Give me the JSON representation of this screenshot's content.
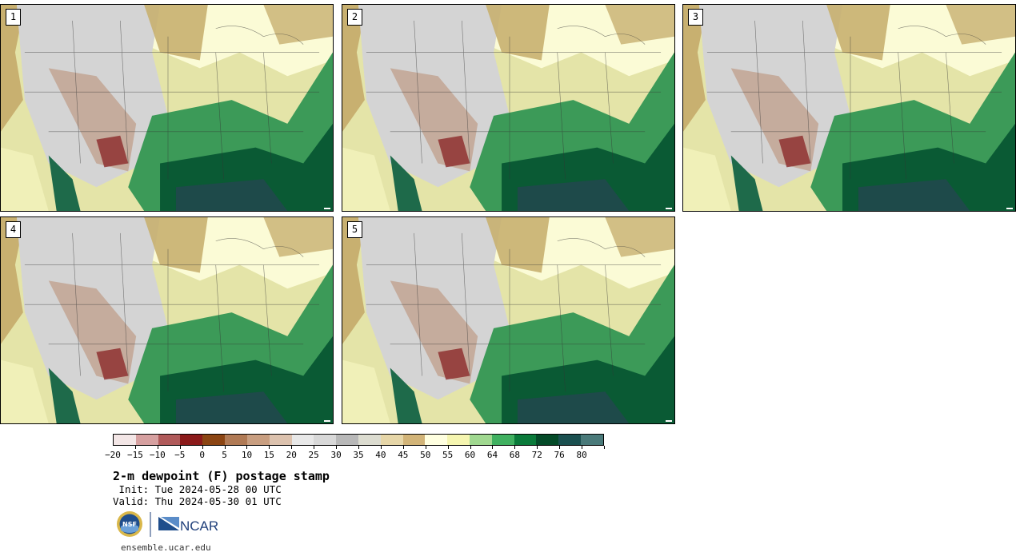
{
  "panels": [
    {
      "label": "1"
    },
    {
      "label": "2"
    },
    {
      "label": "3"
    },
    {
      "label": "4"
    },
    {
      "label": "5"
    }
  ],
  "colorbar": {
    "colors": [
      "#f3e6e6",
      "#d6a0a0",
      "#b05a5a",
      "#8b1a1a",
      "#8b4513",
      "#b07a55",
      "#c89e80",
      "#dcc2ae",
      "#e8e8e8",
      "#d8d8d8",
      "#b8b8b8",
      "#dcdcd0",
      "#e6d6a8",
      "#d2b478",
      "#ffffe0",
      "#f5f5b0",
      "#a0d890",
      "#40b060",
      "#0a7a3a",
      "#044a28",
      "#1a5050",
      "#4a7a7a"
    ],
    "tick_labels": [
      "−20",
      "−15",
      "−10",
      "−5",
      "0",
      "5",
      "10",
      "15",
      "20",
      "25",
      "30",
      "35",
      "40",
      "45",
      "50",
      "55",
      "60",
      "64",
      "68",
      "72",
      "76",
      "80"
    ]
  },
  "title": "2-m dewpoint (F) postage stamp",
  "init": " Init: Tue 2024-05-28 00 UTC",
  "valid": "Valid: Thu 2024-05-30 01 UTC",
  "logos": {
    "nsf_text": "NSF",
    "ncar_text": "NCAR"
  },
  "website": "ensemble.ucar.edu"
}
